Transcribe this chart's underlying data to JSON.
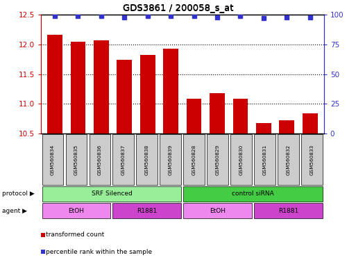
{
  "title": "GDS3861 / 200058_s_at",
  "samples": [
    "GSM560834",
    "GSM560835",
    "GSM560836",
    "GSM560837",
    "GSM560838",
    "GSM560839",
    "GSM560828",
    "GSM560829",
    "GSM560830",
    "GSM560831",
    "GSM560832",
    "GSM560833"
  ],
  "transformed_counts": [
    12.16,
    12.05,
    12.07,
    11.74,
    11.82,
    11.93,
    11.09,
    11.18,
    11.08,
    10.67,
    10.72,
    10.84
  ],
  "percentile_ranks": [
    99,
    99,
    99,
    98,
    99,
    99,
    99,
    98,
    99,
    97,
    98,
    98
  ],
  "ylim_left": [
    10.5,
    12.5
  ],
  "ylim_right": [
    0,
    100
  ],
  "yticks_left": [
    10.5,
    11.0,
    11.5,
    12.0,
    12.5
  ],
  "yticks_right": [
    0,
    25,
    50,
    75,
    100
  ],
  "bar_color": "#cc0000",
  "dot_color": "#3333cc",
  "protocol_groups": [
    {
      "label": "SRF Silenced",
      "start": 0,
      "end": 6,
      "color": "#99ee99"
    },
    {
      "label": "control siRNA",
      "start": 6,
      "end": 12,
      "color": "#44cc44"
    }
  ],
  "agent_groups": [
    {
      "label": "EtOH",
      "start": 0,
      "end": 3,
      "color": "#ee88ee"
    },
    {
      "label": "R1881",
      "start": 3,
      "end": 6,
      "color": "#cc44cc"
    },
    {
      "label": "EtOH",
      "start": 6,
      "end": 9,
      "color": "#ee88ee"
    },
    {
      "label": "R1881",
      "start": 9,
      "end": 12,
      "color": "#cc44cc"
    }
  ],
  "legend_items": [
    {
      "label": "transformed count",
      "color": "#cc0000"
    },
    {
      "label": "percentile rank within the sample",
      "color": "#3333cc"
    }
  ],
  "tick_color_left": "#cc0000",
  "tick_color_right": "#3333cc",
  "background_color": "#ffffff",
  "sample_box_color": "#cccccc",
  "protocol_label": "protocol",
  "agent_label": "agent"
}
